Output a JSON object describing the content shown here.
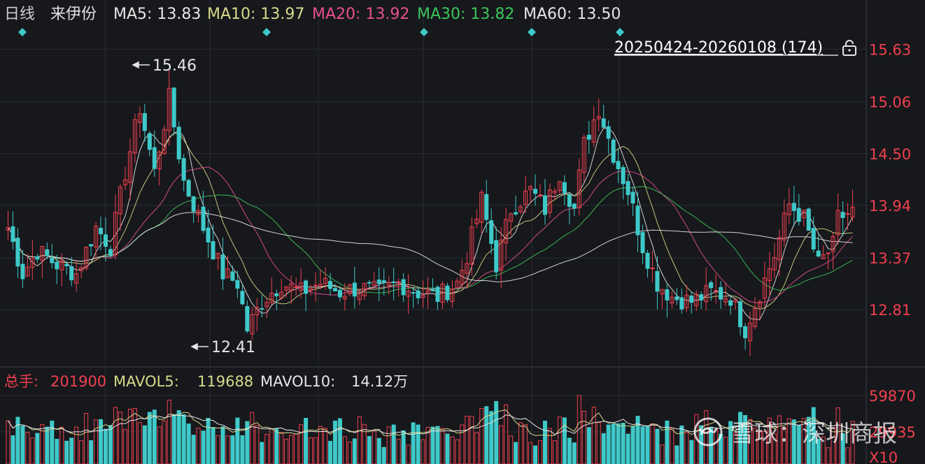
{
  "header": {
    "period": "日线",
    "stock": "来伊份",
    "ma": [
      {
        "label": "MA5:",
        "value": "13.83",
        "color": "#e6e6e6"
      },
      {
        "label": "MA10:",
        "value": "13.97",
        "color": "#d7d98a"
      },
      {
        "label": "MA20:",
        "value": "13.92",
        "color": "#e8508f"
      },
      {
        "label": "MA30:",
        "value": "13.82",
        "color": "#3ec45a"
      },
      {
        "label": "MA60:",
        "value": "13.50",
        "color": "#e6e6e6"
      }
    ]
  },
  "range": {
    "label": "20250424-20260108 (174)",
    "lock_icon": "lock-icon"
  },
  "volume_header": {
    "total_label": "总手:",
    "total_value": "201900",
    "total_color": "#f04050",
    "mavol5_label": "MAVOL5:",
    "mavol5_value": "119688",
    "mavol5_color": "#d7d98a",
    "mavol10_label": "MAVOL10:",
    "mavol10_value": "14.12万",
    "mavol10_color": "#e6e6e6"
  },
  "watermark": {
    "text": "雪球：深圳商报",
    "icon": "snowball-logo-icon"
  },
  "colors": {
    "up": "#f0404e",
    "down": "#3fc9c9",
    "grid": "#2a2d33",
    "axis_text": "#f0404e",
    "bg": "#16181c"
  },
  "chart_data": [
    {
      "type": "candlestick",
      "title": "来伊份 日线",
      "x_range": [
        "20250424",
        "20260108"
      ],
      "count": 174,
      "ylim": [
        12.38,
        15.86
      ],
      "y_ticks": [
        "15.63",
        "15.06",
        "14.50",
        "13.94",
        "13.37",
        "12.81"
      ],
      "annotations": [
        {
          "label": "15.46",
          "value": 15.46,
          "kind": "high"
        },
        {
          "label": "12.41",
          "value": 12.41,
          "kind": "low"
        }
      ],
      "event_markers": 5,
      "series_note": "OHLC approximated from visible trace",
      "trend_points": [
        [
          0,
          13.7
        ],
        [
          3,
          13.2
        ],
        [
          6,
          13.45
        ],
        [
          10,
          13.3
        ],
        [
          14,
          13.2
        ],
        [
          18,
          13.7
        ],
        [
          21,
          13.5
        ],
        [
          24,
          14.3
        ],
        [
          27,
          15.0
        ],
        [
          30,
          14.3
        ],
        [
          33,
          15.1
        ],
        [
          36,
          14.2
        ],
        [
          40,
          13.7
        ],
        [
          44,
          13.2
        ],
        [
          47,
          13.1
        ],
        [
          49,
          12.6
        ],
        [
          52,
          12.9
        ],
        [
          56,
          13.1
        ],
        [
          60,
          13.0
        ],
        [
          64,
          13.1
        ],
        [
          68,
          13.0
        ],
        [
          72,
          13.05
        ],
        [
          76,
          13.0
        ],
        [
          80,
          13.1
        ],
        [
          84,
          13.0
        ],
        [
          88,
          12.95
        ],
        [
          92,
          13.1
        ],
        [
          94,
          13.4
        ],
        [
          97,
          14.0
        ],
        [
          100,
          13.3
        ],
        [
          103,
          13.9
        ],
        [
          107,
          14.1
        ],
        [
          110,
          13.9
        ],
        [
          113,
          14.3
        ],
        [
          116,
          13.9
        ],
        [
          118,
          14.6
        ],
        [
          121,
          15.0
        ],
        [
          124,
          14.5
        ],
        [
          127,
          14.1
        ],
        [
          130,
          13.5
        ],
        [
          133,
          13.1
        ],
        [
          136,
          12.95
        ],
        [
          140,
          12.9
        ],
        [
          144,
          13.0
        ],
        [
          148,
          12.95
        ],
        [
          151,
          12.6
        ],
        [
          154,
          13.0
        ],
        [
          157,
          13.4
        ],
        [
          160,
          13.95
        ],
        [
          163,
          13.8
        ],
        [
          166,
          13.3
        ],
        [
          169,
          13.5
        ],
        [
          170,
          13.8
        ],
        [
          174,
          13.9
        ]
      ],
      "ma_series": [
        {
          "name": "MA5",
          "value": "13.83"
        },
        {
          "name": "MA10",
          "value": "13.97"
        },
        {
          "name": "MA20",
          "value": "13.92"
        },
        {
          "name": "MA30",
          "value": "13.82"
        },
        {
          "name": "MA60",
          "value": "13.50"
        }
      ]
    },
    {
      "type": "bar",
      "title": "总手",
      "y_ticks": [
        "59870",
        "29935",
        "X10"
      ],
      "ylim": [
        0,
        59870
      ],
      "mavol5": "119688",
      "mavol10": "14.12万"
    }
  ]
}
